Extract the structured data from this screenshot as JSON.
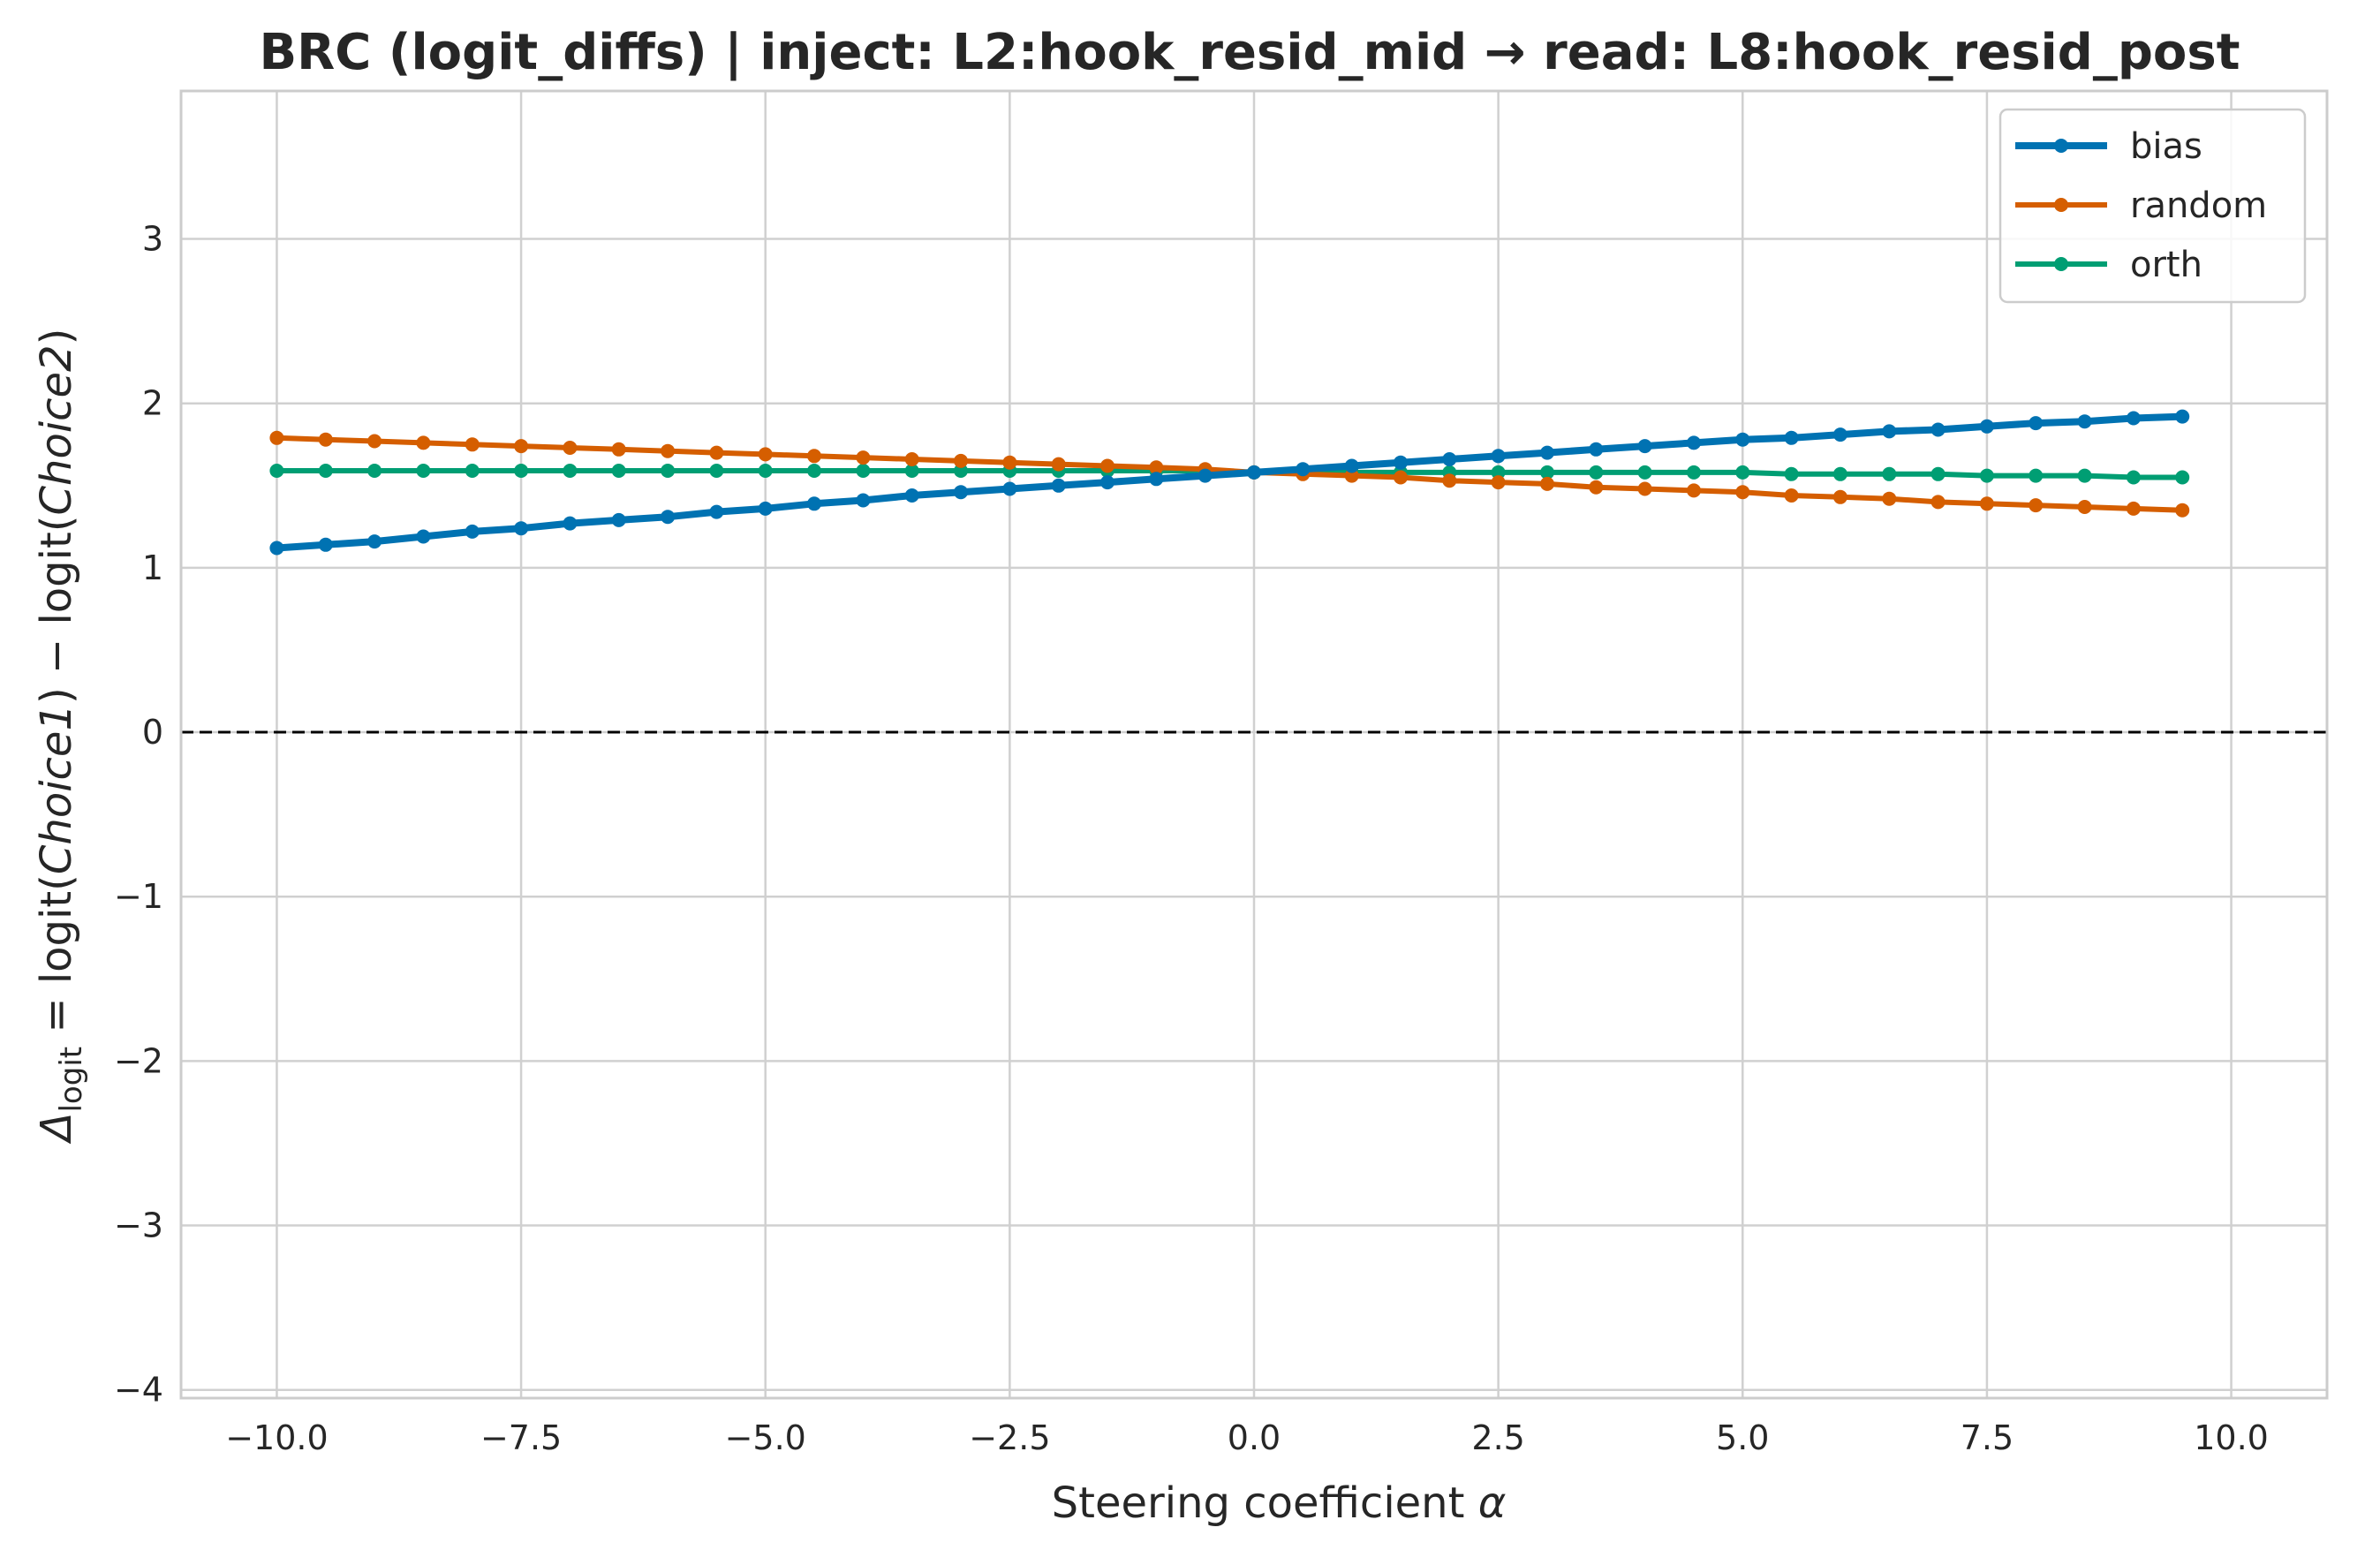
{
  "chart_data": {
    "type": "line",
    "title": "BRC (logit_diffs) | inject: L2:hook_resid_mid → read: L8:hook_resid_post",
    "xlabel_text": "Steering coefficient ",
    "xlabel_symbol": "α",
    "ylabel_parts": {
      "delta": "Δ",
      "subscript": "logit",
      "equals_logit": " = logit(",
      "choice1": "Choice",
      "one": "1",
      "minus_logit": ") − logit(",
      "choice2": "Choice",
      "two": "2",
      "close": ")"
    },
    "xlim": [
      -10.98,
      10.98
    ],
    "ylim": [
      -4.05,
      3.9
    ],
    "xticks": [
      -10,
      -7.5,
      -5,
      -2.5,
      0,
      2.5,
      5,
      7.5,
      10
    ],
    "xtick_labels": [
      "−10.0",
      "−7.5",
      "−5.0",
      "−2.5",
      "0.0",
      "2.5",
      "5.0",
      "7.5",
      "10.0"
    ],
    "yticks": [
      -4,
      -3,
      -2,
      -1,
      0,
      1,
      2,
      3
    ],
    "ytick_labels": [
      "−4",
      "−3",
      "−2",
      "−1",
      "0",
      "1",
      "2",
      "3"
    ],
    "reference_line": {
      "y": 0,
      "style": "dashed"
    },
    "grid": true,
    "legend_position": "top-right",
    "x": [
      -10,
      -9.5,
      -9,
      -8.5,
      -8,
      -7.5,
      -7,
      -6.5,
      -6,
      -5.5,
      -5,
      -4.5,
      -4,
      -3.5,
      -3,
      -2.5,
      -2,
      -1.5,
      -1,
      -0.5,
      0,
      0.5,
      1,
      1.5,
      2,
      2.5,
      3,
      3.5,
      4,
      4.5,
      5,
      5.5,
      6,
      6.5,
      7,
      7.5,
      8,
      8.5,
      9,
      9.5
    ],
    "series": [
      {
        "name": "bias",
        "color": "#0072b2",
        "slope": 0.0413,
        "intercept": 1.583,
        "values": [
          1.12,
          1.14,
          1.16,
          1.19,
          1.22,
          1.24,
          1.27,
          1.29,
          1.31,
          1.34,
          1.36,
          1.39,
          1.41,
          1.44,
          1.46,
          1.48,
          1.5,
          1.52,
          1.54,
          1.56,
          1.58,
          1.6,
          1.62,
          1.64,
          1.66,
          1.68,
          1.7,
          1.72,
          1.74,
          1.76,
          1.78,
          1.79,
          1.81,
          1.83,
          1.84,
          1.86,
          1.88,
          1.89,
          1.91,
          1.92
        ]
      },
      {
        "name": "random",
        "color": "#d55e00",
        "values": [
          1.79,
          1.78,
          1.77,
          1.76,
          1.75,
          1.74,
          1.73,
          1.72,
          1.71,
          1.7,
          1.69,
          1.68,
          1.67,
          1.66,
          1.65,
          1.64,
          1.63,
          1.62,
          1.61,
          1.6,
          1.58,
          1.57,
          1.56,
          1.55,
          1.53,
          1.52,
          1.51,
          1.49,
          1.48,
          1.47,
          1.46,
          1.44,
          1.43,
          1.42,
          1.4,
          1.39,
          1.38,
          1.37,
          1.36,
          1.35
        ]
      },
      {
        "name": "orth",
        "color": "#009e73",
        "values": [
          1.59,
          1.59,
          1.59,
          1.59,
          1.59,
          1.59,
          1.59,
          1.59,
          1.59,
          1.59,
          1.59,
          1.59,
          1.59,
          1.59,
          1.59,
          1.59,
          1.59,
          1.59,
          1.59,
          1.59,
          1.58,
          1.58,
          1.58,
          1.58,
          1.58,
          1.58,
          1.58,
          1.58,
          1.58,
          1.58,
          1.58,
          1.57,
          1.57,
          1.57,
          1.57,
          1.56,
          1.56,
          1.56,
          1.55,
          1.55
        ]
      }
    ]
  }
}
